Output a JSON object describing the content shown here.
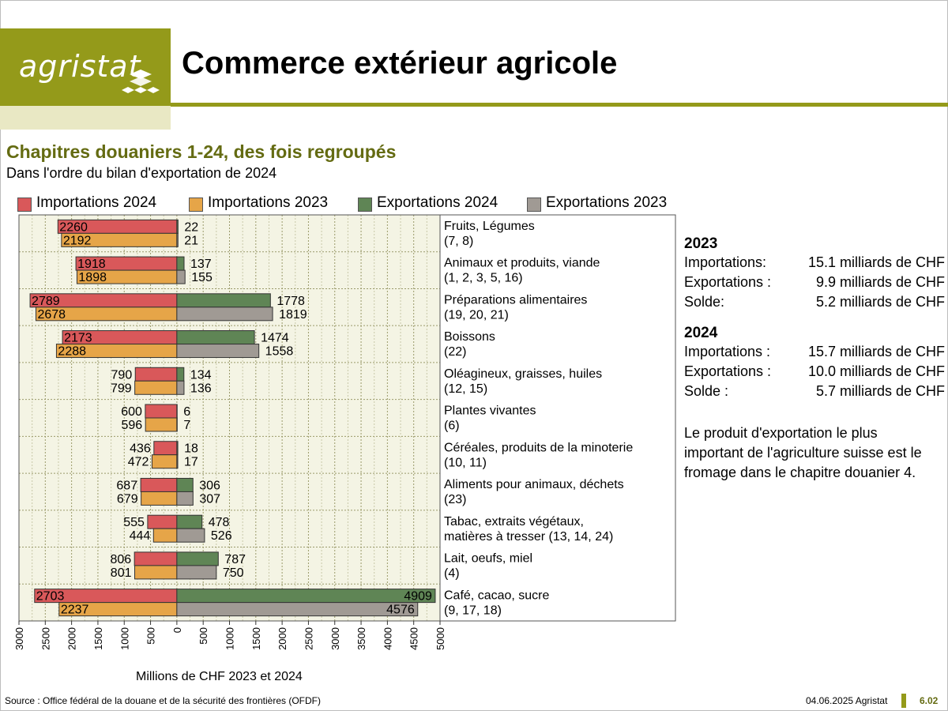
{
  "header": {
    "logo_text": "agristat",
    "title": "Commerce extérieur agricole"
  },
  "subtitle": "Chapitres douaniers 1-24, des fois regroupés",
  "subtitle2": "Dans l'ordre du bilan d'exportation de 2024",
  "legend": [
    {
      "label": "Importations 2024",
      "color": "#d9585a"
    },
    {
      "label": "Importations 2023",
      "color": "#e6a548"
    },
    {
      "label": "Exportations 2024",
      "color": "#5f8555"
    },
    {
      "label": "Exportations 2023",
      "color": "#a09a94"
    }
  ],
  "summary": {
    "y2023": {
      "year": "2023",
      "rows": [
        {
          "label": "Importations:",
          "value": "15.1 milliards de CHF"
        },
        {
          "label": "Exportations :",
          "value": "9.9 milliards de CHF"
        },
        {
          "label": "Solde:",
          "value": "5.2 milliards de CHF"
        }
      ]
    },
    "y2024": {
      "year": "2024",
      "rows": [
        {
          "label": "Importations :",
          "value": "15.7 milliards de CHF"
        },
        {
          "label": "Exportations :",
          "value": "10.0 milliards de CHF"
        },
        {
          "label": "Solde :",
          "value": "5.7 milliards de CHF"
        }
      ]
    },
    "note": "Le produit d'exportation le plus important de l'agriculture suisse est le fromage dans le chapitre douanier 4."
  },
  "footer": {
    "source": "Source : Office fédéral de la douane et de la sécurité des frontières (OFDF)",
    "date": "04.06.2025 Agristat",
    "page": "6.02"
  },
  "chart_data": {
    "type": "bar",
    "orientation": "horizontal-diverging",
    "xlabel": "Millions de CHF 2023 et 2024",
    "xlim": [
      -3000,
      5000
    ],
    "xticks": [
      "3000",
      "2500",
      "2000",
      "1500",
      "1000",
      "500",
      "0",
      "500",
      "1000",
      "1500",
      "2000",
      "2500",
      "3000",
      "3500",
      "4000",
      "4500",
      "5000"
    ],
    "grid": true,
    "categories": [
      {
        "name": "Fruits, Légumes",
        "codes": "(7, 8)"
      },
      {
        "name": "Animaux et produits, viande",
        "codes": "(1, 2, 3, 5, 16)"
      },
      {
        "name": "Préparations alimentaires",
        "codes": "(19, 20, 21)"
      },
      {
        "name": "Boissons",
        "codes": "(22)"
      },
      {
        "name": "Oléagineux, graisses, huiles",
        "codes": "(12, 15)"
      },
      {
        "name": "Plantes vivantes",
        "codes": "(6)"
      },
      {
        "name": "Céréales, produits de la minoterie",
        "codes": "(10, 11)"
      },
      {
        "name": "Aliments pour animaux, déchets",
        "codes": "(23)"
      },
      {
        "name": "Tabac, extraits végétaux,",
        "codes": "matières à tresser (13, 14, 24)"
      },
      {
        "name": "Lait, oeufs, miel",
        "codes": "(4)"
      },
      {
        "name": "Café, cacao, sucre",
        "codes": "(9, 17, 18)"
      }
    ],
    "series": [
      {
        "name": "Importations 2024",
        "values": [
          2260,
          1918,
          2789,
          2173,
          790,
          600,
          436,
          687,
          555,
          806,
          2703
        ]
      },
      {
        "name": "Importations 2023",
        "values": [
          2192,
          1898,
          2678,
          2288,
          799,
          596,
          472,
          679,
          444,
          801,
          2237
        ]
      },
      {
        "name": "Exportations 2024",
        "values": [
          22,
          137,
          1778,
          1474,
          134,
          6,
          18,
          306,
          478,
          787,
          4909
        ]
      },
      {
        "name": "Exportations 2023",
        "values": [
          21,
          155,
          1819,
          1558,
          136,
          7,
          17,
          307,
          526,
          750,
          4576
        ]
      }
    ]
  }
}
